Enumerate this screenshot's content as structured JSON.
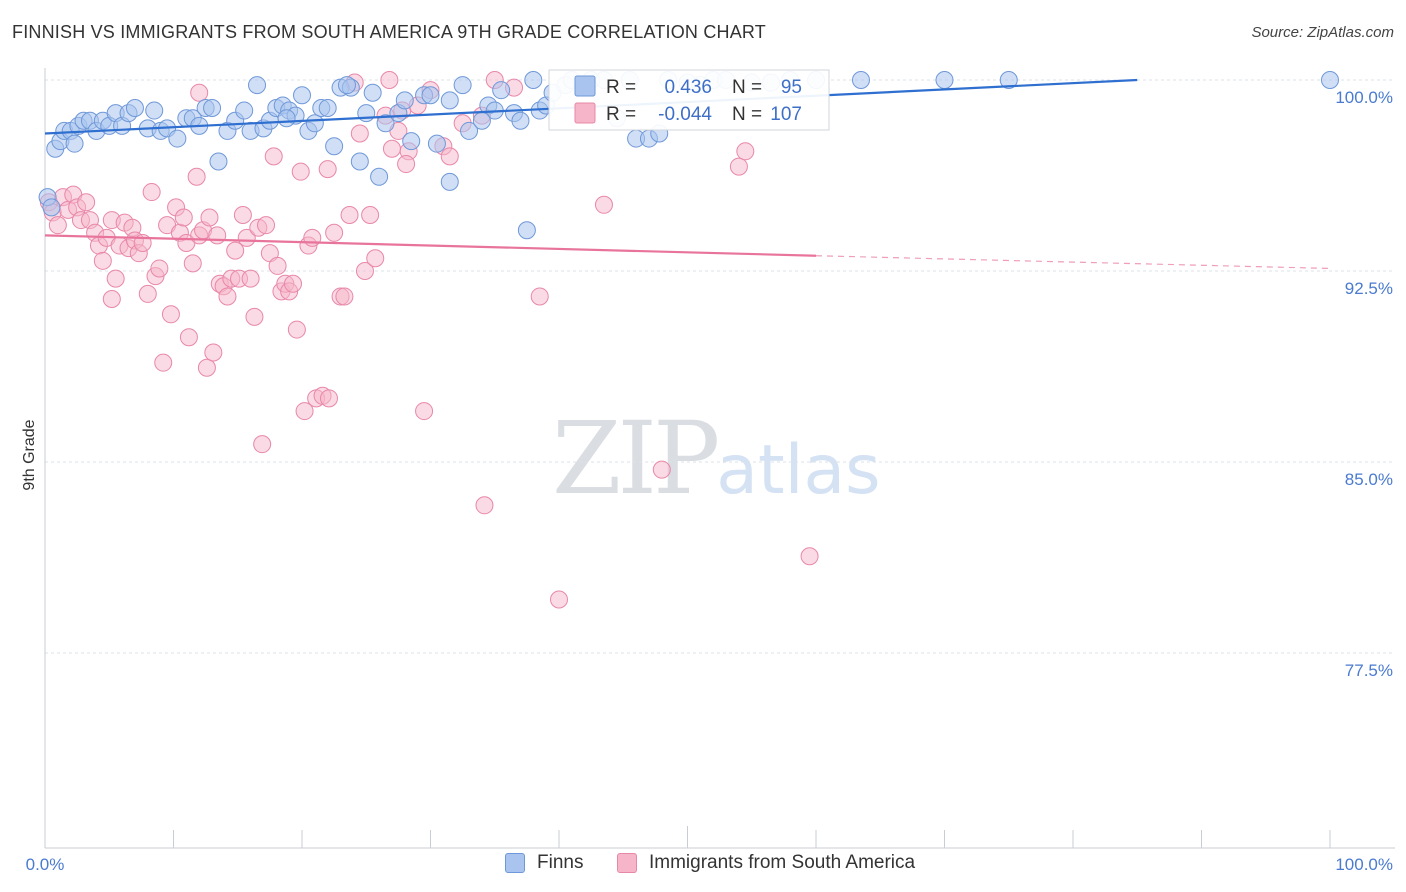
{
  "header": {
    "title": "FINNISH VS IMMIGRANTS FROM SOUTH AMERICA 9TH GRADE CORRELATION CHART",
    "source": "Source: ZipAtlas.com"
  },
  "watermark": {
    "part1": "ZIP",
    "part2": "atlas"
  },
  "legend_box": {
    "rows": [
      {
        "r_label": "R =",
        "r_value": "0.436",
        "n_label": "N =",
        "n_value": "95"
      },
      {
        "r_label": "R =",
        "r_value": "-0.044",
        "n_label": "N =",
        "n_value": "107"
      }
    ]
  },
  "bottom_legend": {
    "finns": "Finns",
    "immigrants": "Immigrants from South America"
  },
  "colors": {
    "finns_fill": "#a9c4ee",
    "finns_stroke": "#6f98d8",
    "finns_line": "#2f6fd0",
    "imm_fill": "#f6b5c9",
    "imm_stroke": "#e888a8",
    "imm_line": "#e8749c",
    "grid": "#dde3ea",
    "tick_text": "#4a7bd0"
  },
  "chart_data": {
    "type": "scatter",
    "title": "FINNISH VS IMMIGRANTS FROM SOUTH AMERICA 9TH GRADE CORRELATION CHART",
    "xlabel": "",
    "ylabel": "9th Grade",
    "xlim": [
      0,
      100
    ],
    "ylim": [
      70.0,
      101.0
    ],
    "x_tick_labels": [
      "0.0%",
      "100.0%"
    ],
    "y_ticks": [
      100.0,
      92.5,
      85.0,
      77.5
    ],
    "y_tick_labels": [
      "100.0%",
      "92.5%",
      "85.0%",
      "77.5%"
    ],
    "series": [
      {
        "name": "Finns",
        "R": 0.436,
        "N": 95,
        "trend": {
          "x0": 0,
          "y0": 97.9,
          "x1": 85.0,
          "y1": 100.0,
          "dashed_to": null
        },
        "points": [
          [
            0.2,
            95.4
          ],
          [
            0.5,
            95.0
          ],
          [
            0.8,
            97.3
          ],
          [
            1.2,
            97.6
          ],
          [
            1.5,
            98.0
          ],
          [
            2.0,
            98.0
          ],
          [
            2.3,
            97.5
          ],
          [
            2.6,
            98.2
          ],
          [
            3.0,
            98.4
          ],
          [
            3.5,
            98.4
          ],
          [
            4.0,
            98.0
          ],
          [
            4.5,
            98.4
          ],
          [
            5.0,
            98.2
          ],
          [
            5.5,
            98.7
          ],
          [
            6.0,
            98.2
          ],
          [
            6.5,
            98.7
          ],
          [
            7.0,
            98.9
          ],
          [
            8.0,
            98.1
          ],
          [
            8.5,
            98.8
          ],
          [
            9.0,
            98.0
          ],
          [
            9.5,
            98.1
          ],
          [
            10.3,
            97.7
          ],
          [
            11.0,
            98.5
          ],
          [
            11.5,
            98.5
          ],
          [
            12.0,
            98.2
          ],
          [
            12.5,
            98.9
          ],
          [
            13.0,
            98.9
          ],
          [
            13.5,
            96.8
          ],
          [
            14.2,
            98.0
          ],
          [
            14.8,
            98.4
          ],
          [
            15.5,
            98.8
          ],
          [
            16.0,
            98.0
          ],
          [
            16.5,
            99.8
          ],
          [
            17.0,
            98.1
          ],
          [
            17.5,
            98.4
          ],
          [
            18.0,
            98.9
          ],
          [
            18.5,
            99.0
          ],
          [
            19.0,
            98.8
          ],
          [
            19.5,
            98.6
          ],
          [
            20.0,
            99.4
          ],
          [
            20.5,
            98.0
          ],
          [
            21.0,
            98.3
          ],
          [
            21.5,
            98.9
          ],
          [
            22.0,
            98.9
          ],
          [
            22.5,
            97.4
          ],
          [
            23.0,
            99.7
          ],
          [
            23.8,
            99.7
          ],
          [
            24.5,
            96.8
          ],
          [
            25.0,
            98.7
          ],
          [
            25.5,
            99.5
          ],
          [
            26.0,
            96.2
          ],
          [
            26.5,
            98.3
          ],
          [
            27.5,
            98.7
          ],
          [
            28.0,
            99.2
          ],
          [
            28.5,
            97.6
          ],
          [
            29.5,
            99.4
          ],
          [
            30.0,
            99.4
          ],
          [
            30.5,
            97.5
          ],
          [
            31.5,
            99.2
          ],
          [
            31.5,
            96.0
          ],
          [
            33.0,
            98.0
          ],
          [
            32.5,
            99.8
          ],
          [
            34.5,
            99.0
          ],
          [
            35.0,
            98.8
          ],
          [
            35.5,
            99.6
          ],
          [
            36.5,
            98.7
          ],
          [
            37.0,
            98.4
          ],
          [
            38.0,
            100.0
          ],
          [
            38.5,
            98.8
          ],
          [
            39.0,
            99.0
          ],
          [
            39.5,
            99.5
          ],
          [
            40.5,
            99.8
          ],
          [
            41.0,
            100.0
          ],
          [
            42.5,
            100.0
          ],
          [
            43.5,
            100.0
          ],
          [
            44.5,
            98.5
          ],
          [
            45.5,
            100.0
          ],
          [
            46.0,
            97.7
          ],
          [
            47.0,
            97.7
          ],
          [
            47.8,
            97.9
          ],
          [
            48.5,
            100.0
          ],
          [
            50.0,
            99.9
          ],
          [
            51.0,
            99.8
          ],
          [
            52.0,
            100.0
          ],
          [
            53.0,
            100.0
          ],
          [
            55.0,
            99.9
          ],
          [
            56.5,
            99.9
          ],
          [
            58.0,
            100.0
          ],
          [
            60.0,
            100.0
          ],
          [
            63.5,
            100.0
          ],
          [
            70.0,
            100.0
          ],
          [
            75.0,
            100.0
          ],
          [
            100.0,
            100.0
          ],
          [
            37.5,
            94.1
          ],
          [
            34.0,
            98.4
          ],
          [
            23.5,
            99.8
          ],
          [
            18.8,
            98.5
          ]
        ]
      },
      {
        "name": "Immigrants from South America",
        "R": -0.044,
        "N": 107,
        "trend": {
          "x0": 0,
          "y0": 93.9,
          "x1": 60.0,
          "y1": 93.1,
          "dashed_to": [
            100.0,
            92.6
          ]
        },
        "points": [
          [
            0.3,
            95.2
          ],
          [
            0.6,
            94.8
          ],
          [
            1.0,
            94.3
          ],
          [
            1.4,
            95.4
          ],
          [
            1.8,
            94.9
          ],
          [
            2.2,
            95.5
          ],
          [
            2.5,
            95.0
          ],
          [
            2.8,
            94.5
          ],
          [
            3.2,
            95.2
          ],
          [
            3.5,
            94.5
          ],
          [
            3.9,
            94.0
          ],
          [
            4.2,
            93.5
          ],
          [
            4.5,
            92.9
          ],
          [
            4.8,
            93.8
          ],
          [
            5.2,
            94.5
          ],
          [
            5.5,
            92.2
          ],
          [
            5.2,
            91.4
          ],
          [
            5.8,
            93.5
          ],
          [
            6.2,
            94.4
          ],
          [
            6.5,
            93.4
          ],
          [
            6.8,
            94.2
          ],
          [
            7.0,
            93.7
          ],
          [
            7.3,
            93.2
          ],
          [
            7.6,
            93.6
          ],
          [
            8.0,
            91.6
          ],
          [
            8.3,
            95.6
          ],
          [
            8.6,
            92.3
          ],
          [
            8.9,
            92.6
          ],
          [
            9.2,
            88.9
          ],
          [
            9.5,
            94.3
          ],
          [
            9.8,
            90.8
          ],
          [
            10.2,
            95.0
          ],
          [
            10.5,
            94.0
          ],
          [
            10.8,
            94.6
          ],
          [
            11.0,
            93.6
          ],
          [
            11.2,
            89.9
          ],
          [
            11.5,
            92.8
          ],
          [
            11.8,
            96.2
          ],
          [
            12.0,
            93.9
          ],
          [
            12.3,
            94.1
          ],
          [
            12.6,
            88.7
          ],
          [
            12.8,
            94.6
          ],
          [
            13.1,
            89.3
          ],
          [
            13.4,
            93.9
          ],
          [
            13.6,
            92.0
          ],
          [
            13.9,
            91.9
          ],
          [
            14.2,
            91.5
          ],
          [
            14.5,
            92.2
          ],
          [
            14.8,
            93.3
          ],
          [
            15.1,
            92.2
          ],
          [
            15.4,
            94.7
          ],
          [
            15.7,
            93.8
          ],
          [
            16.0,
            92.2
          ],
          [
            16.3,
            90.7
          ],
          [
            16.6,
            94.2
          ],
          [
            16.9,
            85.7
          ],
          [
            17.2,
            94.3
          ],
          [
            17.5,
            93.2
          ],
          [
            17.8,
            97.0
          ],
          [
            18.1,
            92.7
          ],
          [
            18.4,
            91.7
          ],
          [
            18.7,
            92.0
          ],
          [
            19.0,
            91.7
          ],
          [
            19.3,
            92.0
          ],
          [
            19.6,
            90.2
          ],
          [
            19.9,
            96.4
          ],
          [
            20.2,
            87.0
          ],
          [
            20.5,
            93.5
          ],
          [
            20.8,
            93.8
          ],
          [
            21.1,
            87.5
          ],
          [
            21.6,
            87.6
          ],
          [
            22.1,
            87.5
          ],
          [
            22.5,
            94.0
          ],
          [
            23.0,
            91.5
          ],
          [
            23.3,
            91.5
          ],
          [
            23.7,
            94.7
          ],
          [
            24.1,
            99.9
          ],
          [
            24.5,
            97.9
          ],
          [
            24.9,
            92.5
          ],
          [
            25.3,
            94.7
          ],
          [
            25.7,
            93.0
          ],
          [
            26.5,
            98.6
          ],
          [
            27.0,
            97.3
          ],
          [
            27.5,
            98.0
          ],
          [
            27.8,
            98.8
          ],
          [
            28.3,
            97.2
          ],
          [
            28.1,
            96.7
          ],
          [
            29.0,
            99.0
          ],
          [
            29.5,
            87.0
          ],
          [
            30.0,
            99.6
          ],
          [
            31.0,
            97.4
          ],
          [
            31.5,
            97.0
          ],
          [
            32.5,
            98.3
          ],
          [
            34.0,
            98.6
          ],
          [
            35.0,
            100.0
          ],
          [
            36.5,
            99.7
          ],
          [
            38.5,
            91.5
          ],
          [
            40.0,
            79.6
          ],
          [
            43.5,
            95.1
          ],
          [
            48.0,
            84.7
          ],
          [
            54.0,
            96.6
          ],
          [
            54.5,
            97.2
          ],
          [
            59.5,
            81.3
          ],
          [
            26.8,
            100.0
          ],
          [
            34.2,
            83.3
          ],
          [
            12.0,
            99.5
          ],
          [
            22.0,
            96.5
          ]
        ]
      }
    ]
  }
}
